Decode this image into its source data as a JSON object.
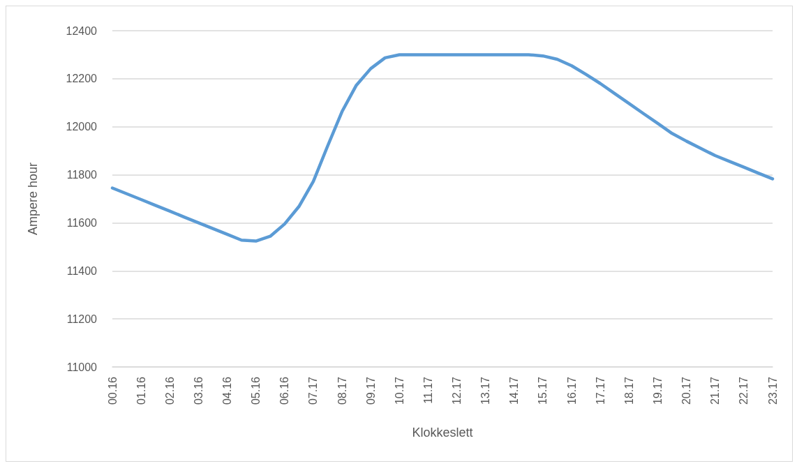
{
  "chart_data": {
    "type": "line",
    "xlabel": "Klokkeslett",
    "ylabel": "Ampere hour",
    "categories": [
      "00.16",
      null,
      "01.16",
      null,
      "02.16",
      null,
      "03.16",
      null,
      "04.16",
      null,
      "05.16",
      null,
      "06.16",
      null,
      "07.17",
      null,
      "08.17",
      null,
      "09.17",
      null,
      "10.17",
      null,
      "11.17",
      null,
      "12.17",
      null,
      "13.17",
      null,
      "14.17",
      null,
      "15.17",
      null,
      "16.17",
      null,
      "17.17",
      null,
      "18.17",
      null,
      "19.17",
      null,
      "20.17",
      null,
      "21.17",
      null,
      "22.17",
      null,
      "23.17"
    ],
    "series": [
      {
        "color": "#5b9bd5",
        "values": [
          11745,
          11721,
          11697,
          11673,
          11649,
          11624,
          11600,
          11576,
          11552,
          11528,
          11524,
          11544,
          11595,
          11668,
          11772,
          11920,
          12063,
          12173,
          12242,
          12287,
          12300,
          12300,
          12300,
          12300,
          12300,
          12300,
          12300,
          12300,
          12300,
          12300,
          12295,
          12281,
          12254,
          12218,
          12180,
          12138,
          12097,
          12055,
          12014,
          11972,
          11940,
          11910,
          11880,
          11856,
          11832,
          11807,
          11783
        ]
      }
    ],
    "ylim": [
      11000,
      12400
    ],
    "yticks": [
      11000,
      11200,
      11400,
      11600,
      11800,
      12000,
      12200,
      12400
    ],
    "grid": "y",
    "marker": "none",
    "line_style": "solid"
  }
}
